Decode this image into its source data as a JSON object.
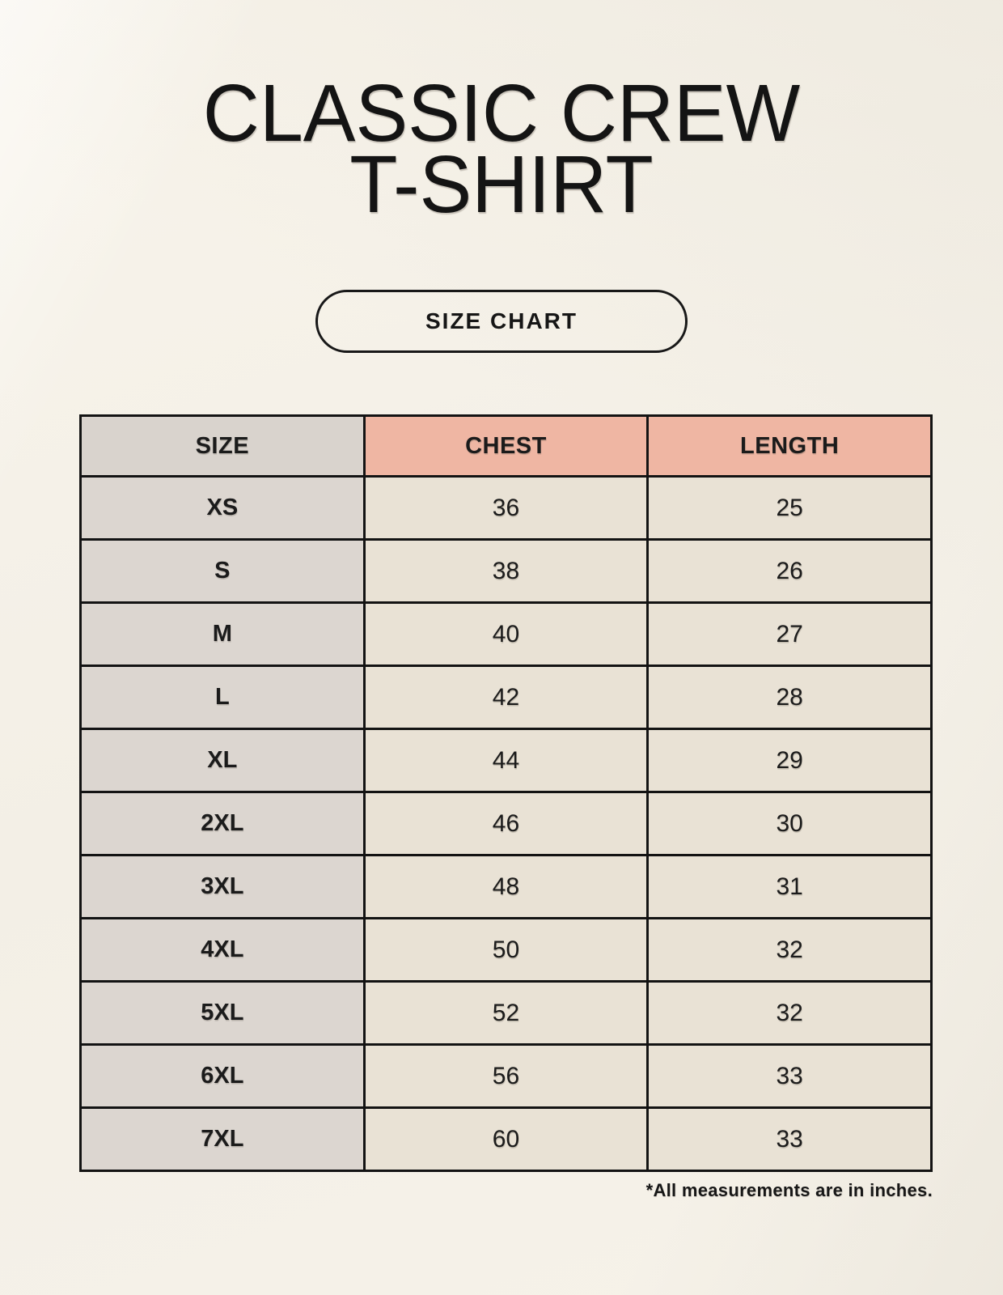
{
  "header": {
    "title_line1": "CLASSIC CREW",
    "title_line2": "T-SHIRT",
    "badge_label": "SIZE CHART"
  },
  "table": {
    "headers": [
      "SIZE",
      "CHEST",
      "LENGTH"
    ],
    "rows": [
      {
        "size": "XS",
        "chest": "36",
        "length": "25"
      },
      {
        "size": "S",
        "chest": "38",
        "length": "26"
      },
      {
        "size": "M",
        "chest": "40",
        "length": "27"
      },
      {
        "size": "L",
        "chest": "42",
        "length": "28"
      },
      {
        "size": "XL",
        "chest": "44",
        "length": "29"
      },
      {
        "size": "2XL",
        "chest": "46",
        "length": "30"
      },
      {
        "size": "3XL",
        "chest": "48",
        "length": "31"
      },
      {
        "size": "4XL",
        "chest": "50",
        "length": "32"
      },
      {
        "size": "5XL",
        "chest": "52",
        "length": "32"
      },
      {
        "size": "6XL",
        "chest": "56",
        "length": "33"
      },
      {
        "size": "7XL",
        "chest": "60",
        "length": "33"
      }
    ],
    "units_note": "*All measurements are in inches."
  },
  "colors": {
    "page_background": "#f5f1e8",
    "header_accent": "#efb6a3",
    "size_column_fill": "#dcd6d0",
    "cell_fill": "#e9e2d5",
    "table_border": "#131313",
    "text": "#1b1b1b"
  }
}
